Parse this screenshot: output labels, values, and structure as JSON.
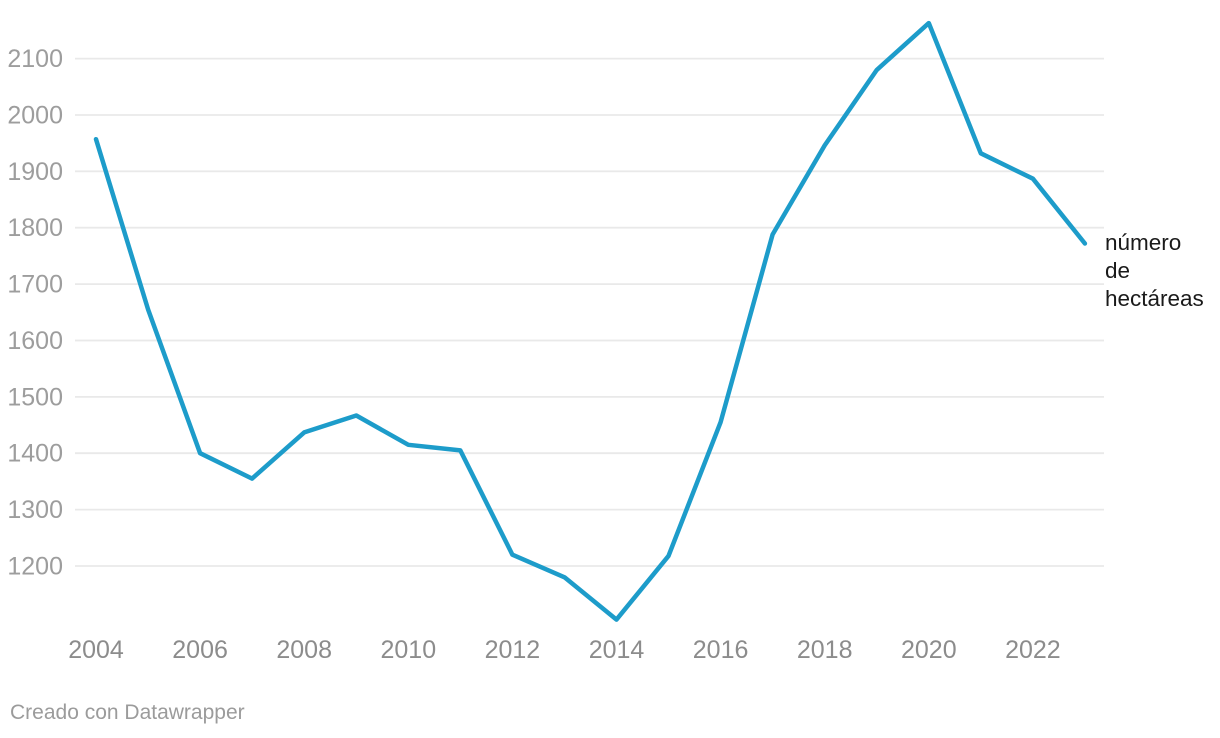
{
  "chart_data": {
    "type": "line",
    "title": "",
    "xlabel": "",
    "ylabel": "número de hectáreas",
    "x": [
      2004,
      2005,
      2006,
      2007,
      2008,
      2009,
      2010,
      2011,
      2012,
      2013,
      2014,
      2015,
      2016,
      2017,
      2018,
      2019,
      2020,
      2021,
      2022,
      2023
    ],
    "series": [
      {
        "name": "número de hectáreas",
        "values": [
          1957,
          1655,
          1400,
          1355,
          1437,
          1467,
          1415,
          1405,
          1220,
          1180,
          1105,
          1218,
          1455,
          1788,
          1946,
          2080,
          2163,
          1932,
          1887,
          1772
        ]
      }
    ],
    "xticks": [
      2004,
      2006,
      2008,
      2010,
      2012,
      2014,
      2016,
      2018,
      2020,
      2022
    ],
    "yticks": [
      1200,
      1300,
      1400,
      1500,
      1600,
      1700,
      1800,
      1900,
      2000,
      2100
    ],
    "xlim": [
      2004,
      2023
    ],
    "ylim": [
      1090,
      2175
    ],
    "grid": "horizontal",
    "legend_position": "end-of-line",
    "colors": {
      "line": "#1d9cca",
      "grid": "#e9e9e9",
      "tick_y": "#9d9d9d",
      "tick_x": "#8c8c8c",
      "annotation": "#1a1a1a",
      "credit": "#9b9b9b"
    }
  },
  "annotation": {
    "lines": [
      "número",
      "de",
      "hectáreas"
    ]
  },
  "footer": {
    "credit": "Creado con Datawrapper"
  }
}
